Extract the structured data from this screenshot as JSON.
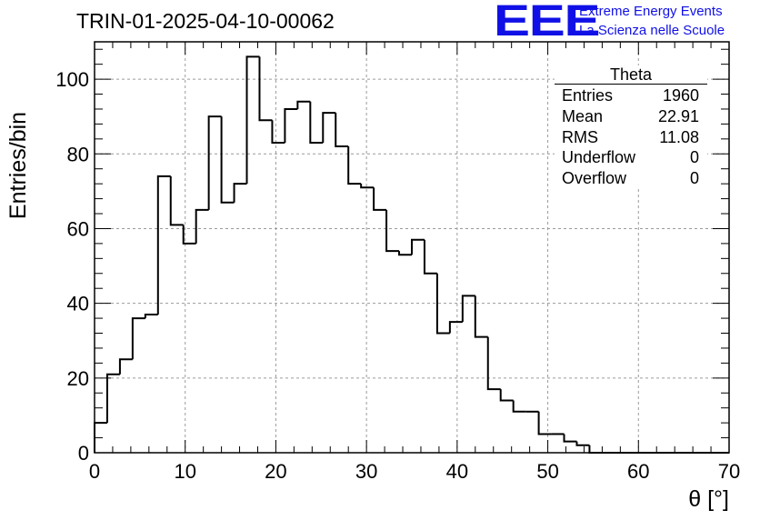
{
  "header": {
    "title": "TRIN-01-2025-04-10-00062",
    "logo_text": "EEE",
    "logo_line1": "Extreme Energy Events",
    "logo_line2": "La Scienza nelle Scuole"
  },
  "stats_box": {
    "name": "Theta",
    "rows": [
      {
        "label": "Entries",
        "value": "1960"
      },
      {
        "label": "Mean",
        "value": "22.91"
      },
      {
        "label": "RMS",
        "value": "11.08"
      },
      {
        "label": "Underflow",
        "value": "0"
      },
      {
        "label": "Overflow",
        "value": "0"
      }
    ]
  },
  "chart_data": {
    "type": "histogram",
    "title": "TRIN-01-2025-04-10-00062",
    "xlabel": "θ [°]",
    "ylabel": "Entries/bin",
    "xlim": [
      0,
      70
    ],
    "ylim": [
      0,
      110
    ],
    "bin_width": 1.4,
    "x_ticks": [
      0,
      10,
      20,
      30,
      40,
      50,
      60,
      70
    ],
    "y_ticks": [
      0,
      20,
      40,
      60,
      80,
      100
    ],
    "grid": true,
    "line_color": "#000000",
    "values": [
      8,
      21,
      25,
      36,
      37,
      74,
      61,
      56,
      65,
      90,
      67,
      72,
      106,
      89,
      83,
      92,
      94,
      83,
      91,
      82,
      72,
      71,
      65,
      54,
      53,
      57,
      48,
      32,
      35,
      42,
      31,
      17,
      14,
      11,
      11,
      5,
      5,
      3,
      2,
      0,
      0,
      0,
      0,
      0,
      0,
      0,
      0,
      0,
      0,
      0
    ]
  }
}
